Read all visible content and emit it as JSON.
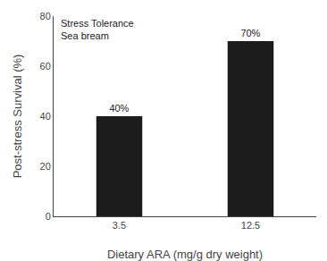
{
  "chart_data": {
    "type": "bar",
    "categories": [
      "3.5",
      "12.5"
    ],
    "values": [
      40,
      70
    ],
    "value_labels": [
      "40%",
      "70%"
    ],
    "data_labels": true,
    "color": "#1c1c1c",
    "xlabel": "Dietary ARA (mg/g dry weight)",
    "ylabel": "Post-stress Survival (%)",
    "ylim": [
      0,
      80
    ],
    "yticks": [
      0,
      20,
      40,
      60,
      80
    ],
    "annotations": [
      "Stress Tolerance\nSea bream"
    ],
    "grid": false
  }
}
